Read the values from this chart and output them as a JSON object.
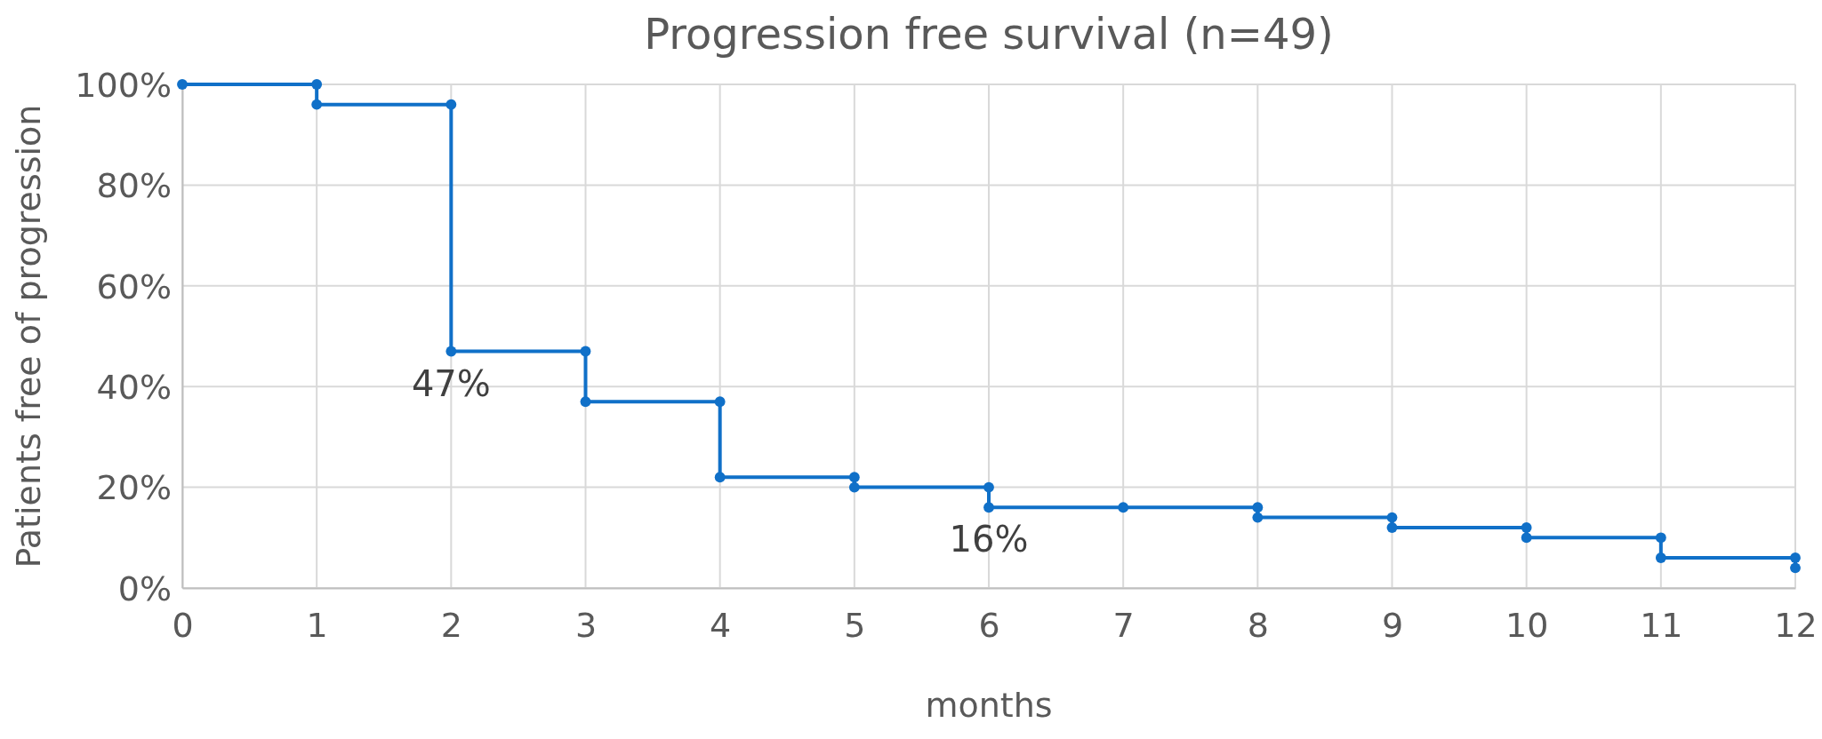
{
  "chart_data": {
    "type": "line",
    "title": "Progression free survival (n=49)",
    "xlabel": "months",
    "ylabel": "Patients free of progression",
    "x": [
      0,
      1,
      1,
      2,
      2,
      3,
      3,
      4,
      4,
      5,
      5,
      6,
      6,
      7,
      8,
      8,
      9,
      9,
      10,
      10,
      11,
      11,
      12,
      12
    ],
    "series": [
      {
        "color": "#1070c8",
        "values": [
          100,
          100,
          96,
          96,
          47,
          47,
          37,
          37,
          22,
          22,
          20,
          20,
          16,
          16,
          16,
          14,
          14,
          12,
          12,
          10,
          10,
          6,
          6,
          4
        ]
      }
    ],
    "xlim": [
      0,
      12
    ],
    "xticks": [
      0,
      1,
      2,
      3,
      4,
      5,
      6,
      7,
      8,
      9,
      10,
      11,
      12
    ],
    "ylim": [
      0,
      100
    ],
    "yticks": [
      {
        "value": 0,
        "label": "0%"
      },
      {
        "value": 20,
        "label": "20%"
      },
      {
        "value": 40,
        "label": "40%"
      },
      {
        "value": 60,
        "label": "60%"
      },
      {
        "value": 80,
        "label": "80%"
      },
      {
        "value": 100,
        "label": "100%"
      }
    ],
    "grid": true,
    "marker": "circle",
    "line_style": "solid",
    "annotations": [
      {
        "text": "47%",
        "x": 2,
        "y": 47
      },
      {
        "text": "16%",
        "x": 6,
        "y": 16
      }
    ]
  }
}
